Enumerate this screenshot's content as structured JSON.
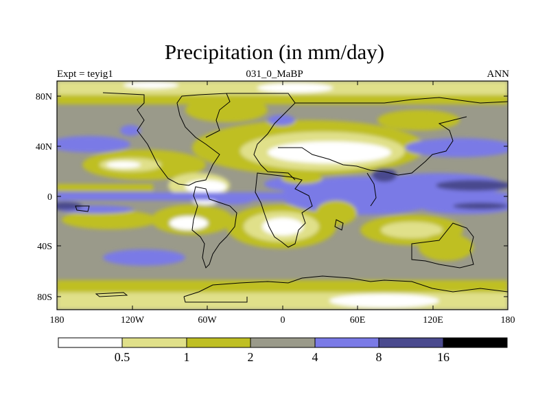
{
  "title": "Precipitation (in mm/day)",
  "experiment_label": "Expt = teyig1",
  "period_label": "031_0_MaBP",
  "season_label": "ANN",
  "x_ticks": [
    "180",
    "120W",
    "60W",
    "0",
    "60E",
    "120E",
    "180"
  ],
  "y_ticks": [
    "80N",
    "40N",
    "0",
    "40S",
    "80S"
  ],
  "colorbar": {
    "levels": [
      "0.5",
      "1",
      "2",
      "4",
      "8",
      "16"
    ],
    "colors": [
      "#ffffff",
      "#e0e08a",
      "#bfbf24",
      "#9a9a8a",
      "#7a7ae6",
      "#4a4a8e",
      "#000000"
    ]
  },
  "chart_data": {
    "type": "filled-contour-map",
    "variable": "Precipitation",
    "units": "mm/day",
    "title": "Precipitation (in mm/day)",
    "xlim": [
      -180,
      180
    ],
    "ylim": [
      -90,
      90
    ],
    "contour_levels": [
      0.5,
      1,
      2,
      4,
      8,
      16
    ]
  }
}
